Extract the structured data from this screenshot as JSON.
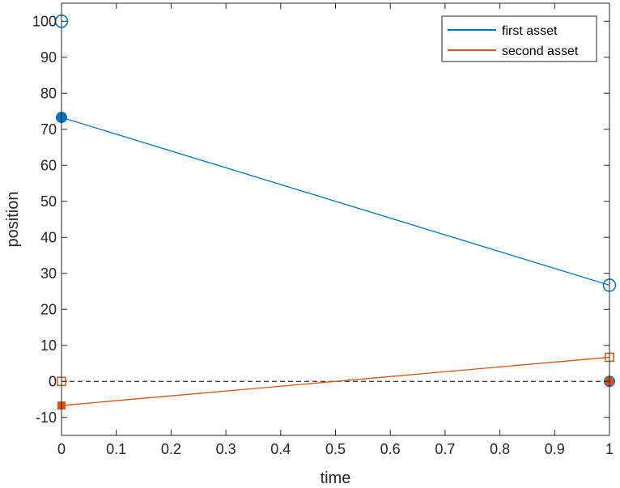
{
  "chart_data": {
    "type": "line",
    "xlabel": "time",
    "ylabel": "position",
    "xlim": [
      0,
      1
    ],
    "ylim": [
      -15,
      105
    ],
    "xticks": [
      0,
      0.1,
      0.2,
      0.3,
      0.4,
      0.5,
      0.6,
      0.7,
      0.8,
      0.9,
      1
    ],
    "xtick_labels": [
      "0",
      "0.1",
      "0.2",
      "0.3",
      "0.4",
      "0.5",
      "0.6",
      "0.7",
      "0.8",
      "0.9",
      "1"
    ],
    "yticks": [
      -10,
      0,
      10,
      20,
      30,
      40,
      50,
      60,
      70,
      80,
      90,
      100
    ],
    "ytick_labels": [
      "-10",
      "0",
      "10",
      "20",
      "30",
      "40",
      "50",
      "60",
      "70",
      "80",
      "90",
      "100"
    ],
    "grid": false,
    "legend_position": "top-right",
    "zero_line": {
      "y": 0,
      "style": "dashed",
      "color": "#000000"
    },
    "series": [
      {
        "name": "first asset",
        "color": "#0072BD",
        "x": [
          0,
          1
        ],
        "y": [
          73.3,
          26.7
        ],
        "filled_markers": [
          {
            "x": 0,
            "y": 73.3,
            "shape": "circle"
          },
          {
            "x": 1,
            "y": 0,
            "shape": "circle"
          }
        ],
        "open_markers": [
          {
            "x": 0,
            "y": 100,
            "shape": "circle"
          },
          {
            "x": 1,
            "y": 26.7,
            "shape": "circle"
          }
        ]
      },
      {
        "name": "second asset",
        "color": "#D95319",
        "x": [
          0,
          1
        ],
        "y": [
          -6.7,
          6.7
        ],
        "filled_markers": [
          {
            "x": 0,
            "y": -6.7,
            "shape": "square"
          },
          {
            "x": 1,
            "y": 0,
            "shape": "square"
          }
        ],
        "open_markers": [
          {
            "x": 0,
            "y": 0,
            "shape": "square"
          },
          {
            "x": 1,
            "y": 6.7,
            "shape": "square"
          }
        ]
      }
    ]
  }
}
